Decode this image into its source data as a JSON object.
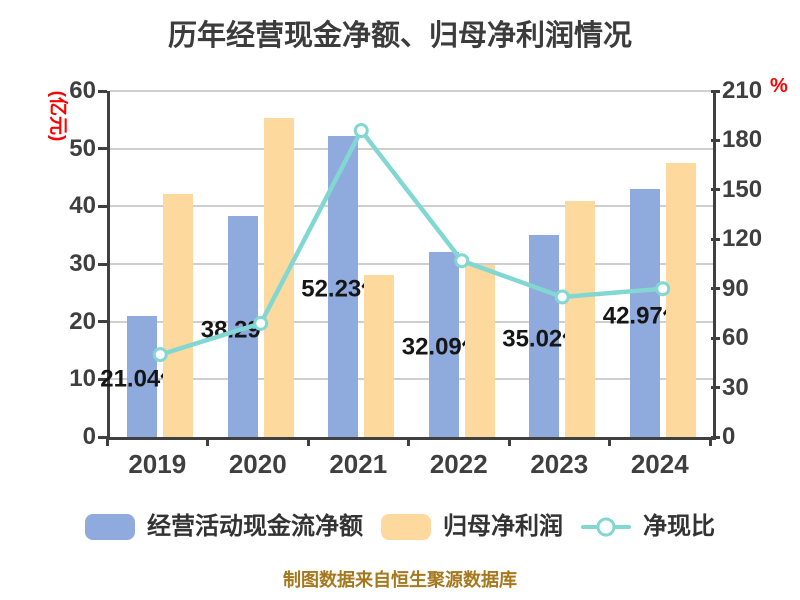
{
  "chart_data": {
    "type": "bar+line",
    "title": "历年经营现金净额、归母净利润情况",
    "categories": [
      "2019",
      "2020",
      "2021",
      "2022",
      "2023",
      "2024"
    ],
    "series": [
      {
        "name": "经营活动现金流净额",
        "type": "bar",
        "axis": "left",
        "color": "#8faadc",
        "values": [
          21.04,
          38.29,
          52.23,
          32.09,
          35.02,
          42.97
        ],
        "labels": [
          "21.04亿",
          "38.29亿",
          "52.23亿",
          "32.09亿",
          "35.02亿",
          "42.97亿"
        ]
      },
      {
        "name": "归母净利润",
        "type": "bar",
        "axis": "left",
        "color": "#fdd99e",
        "values": [
          42.1,
          55.3,
          28.1,
          29.9,
          41.0,
          47.6
        ]
      },
      {
        "name": "净现比",
        "type": "line",
        "axis": "right",
        "color": "#82d7d3",
        "marker": "circle-white-fill",
        "values": [
          50,
          69,
          186,
          107,
          85,
          90
        ]
      }
    ],
    "left_axis": {
      "label": "(亿元)",
      "min": 0,
      "max": 60,
      "ticks": [
        0,
        10,
        20,
        30,
        40,
        50,
        60
      ]
    },
    "right_axis": {
      "label": "%",
      "min": 0,
      "max": 210,
      "ticks": [
        0,
        30,
        60,
        90,
        120,
        150,
        180,
        210
      ]
    },
    "grid": true,
    "legend_position": "bottom",
    "source_note": "制图数据来自恒生聚源数据库"
  },
  "colors": {
    "cash_bar": "#8faadc",
    "profit_bar": "#fdd99e",
    "ratio_line": "#82d7d3",
    "axis_unit_red": "#ff0000",
    "title_text": "#3c3c3c",
    "tick_text": "#3f3f3f",
    "gridline": "#cfcfcf",
    "source_note_gold": "#a6781e"
  }
}
